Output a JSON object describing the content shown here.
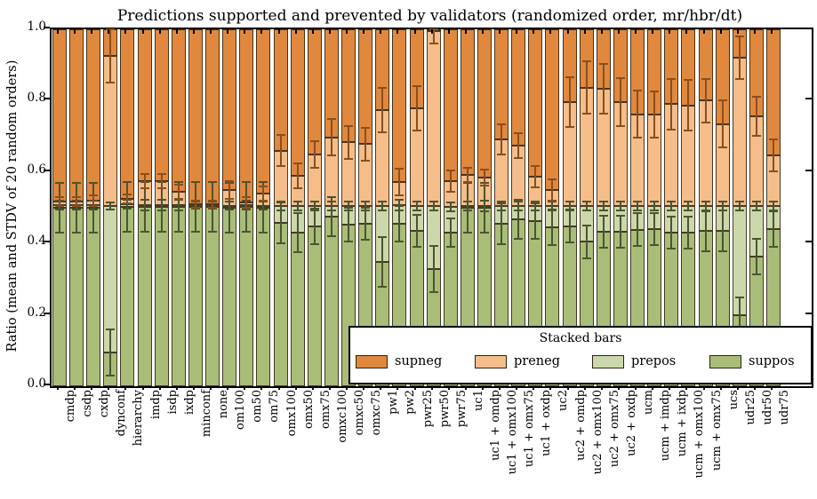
{
  "figure": {
    "title": "Predictions supported and prevented by validators (randomized order, mr/hbr/dt)",
    "ylabel": "Ratio (mean and STDV of 20 random orders)"
  },
  "legend": {
    "title": "Stacked bars",
    "entries": [
      {
        "label": "supneg",
        "color": "#e0883e"
      },
      {
        "label": "preneg",
        "color": "#f4bd8a"
      },
      {
        "label": "prepos",
        "color": "#ccd8ab"
      },
      {
        "label": "suppos",
        "color": "#a9bd79"
      }
    ]
  },
  "axes": {
    "yticks": [
      "0.0",
      "0.2",
      "0.4",
      "0.6",
      "0.8",
      "1.0"
    ]
  },
  "chart_data": {
    "type": "bar",
    "stacked": true,
    "title": "Predictions supported and prevented by validators (randomized order, mr/hbr/dt)",
    "xlabel": "",
    "ylabel": "Ratio (mean and STDV of 20 random orders)",
    "ylim": [
      0,
      1
    ],
    "grid": false,
    "legend_position": "lower right",
    "categories": [
      "cmdp",
      "csdp",
      "cxdp",
      "dynconf",
      "hierarchy",
      "imdp",
      "isdp",
      "ixdp",
      "minconf",
      "none",
      "om100",
      "om50",
      "om75",
      "omx100",
      "omx50",
      "omx75",
      "omxc100",
      "omxc50",
      "omxc75",
      "pw1",
      "pw2",
      "pwr25",
      "pwr50",
      "pwr75",
      "uc1",
      "uc1 + omdp",
      "uc1 + omx100",
      "uc1 + omx75",
      "uc1 + oxdp",
      "uc2",
      "uc2 + omdp",
      "uc2 + omx100",
      "uc2 + omx75",
      "uc2 + oxdp",
      "ucm",
      "ucm + imdp",
      "ucm + ixdp",
      "ucm + omx100",
      "ucm + omx75",
      "ucs",
      "udr25",
      "udr50",
      "udr75"
    ],
    "series": [
      {
        "name": "suppos",
        "color": "#a9bd79",
        "values": [
          0.5,
          0.5,
          0.5,
          0.095,
          0.503,
          0.503,
          0.503,
          0.503,
          0.503,
          0.503,
          0.5,
          0.502,
          0.501,
          0.458,
          0.43,
          0.447,
          0.475,
          0.452,
          0.455,
          0.348,
          0.455,
          0.435,
          0.328,
          0.43,
          0.5,
          0.5,
          0.455,
          0.468,
          0.463,
          0.445,
          0.448,
          0.405,
          0.432,
          0.432,
          0.439,
          0.44,
          0.43,
          0.43,
          0.435,
          0.435,
          0.2,
          0.363,
          0.44
        ]
      },
      {
        "name": "prepos",
        "color": "#ccd8ab",
        "values": [
          0.008,
          0.008,
          0.008,
          0.41,
          0.007,
          0.005,
          0.005,
          0.005,
          0.004,
          0.004,
          0.006,
          0.005,
          0.005,
          0.047,
          0.075,
          0.058,
          0.03,
          0.053,
          0.05,
          0.157,
          0.053,
          0.07,
          0.177,
          0.073,
          0.005,
          0.005,
          0.05,
          0.037,
          0.042,
          0.06,
          0.057,
          0.1,
          0.073,
          0.073,
          0.066,
          0.065,
          0.075,
          0.075,
          0.07,
          0.07,
          0.305,
          0.142,
          0.065
        ]
      },
      {
        "name": "preneg",
        "color": "#f4bd8a",
        "values": [
          0.009,
          0.01,
          0.012,
          0.42,
          0.015,
          0.067,
          0.067,
          0.037,
          0.003,
          0.003,
          0.044,
          0.008,
          0.034,
          0.155,
          0.085,
          0.144,
          0.192,
          0.178,
          0.174,
          0.269,
          0.064,
          0.274,
          0.49,
          0.072,
          0.087,
          0.08,
          0.187,
          0.17,
          0.083,
          0.045,
          0.291,
          0.332,
          0.328,
          0.291,
          0.257,
          0.257,
          0.285,
          0.282,
          0.295,
          0.229,
          0.415,
          0.252,
          0.142
        ]
      },
      {
        "name": "supneg",
        "color": "#e0883e",
        "values": [
          0.483,
          0.482,
          0.48,
          0.075,
          0.475,
          0.425,
          0.425,
          0.455,
          0.49,
          0.49,
          0.45,
          0.485,
          0.46,
          0.34,
          0.41,
          0.351,
          0.303,
          0.317,
          0.321,
          0.226,
          0.428,
          0.221,
          0.005,
          0.425,
          0.408,
          0.415,
          0.308,
          0.325,
          0.412,
          0.45,
          0.204,
          0.163,
          0.167,
          0.204,
          0.238,
          0.238,
          0.21,
          0.213,
          0.2,
          0.266,
          0.08,
          0.243,
          0.353
        ]
      }
    ],
    "error_bars": {
      "suppos_top": [
        0.07,
        0.07,
        0.07,
        0.065,
        0.07,
        0.07,
        0.07,
        0.07,
        0.07,
        0.07,
        0.07,
        0.07,
        0.07,
        0.058,
        0.055,
        0.05,
        0.055,
        0.047,
        0.045,
        0.07,
        0.05,
        0.045,
        0.065,
        0.04,
        0.07,
        0.07,
        0.058,
        0.055,
        0.05,
        0.05,
        0.046,
        0.046,
        0.045,
        0.045,
        0.045,
        0.045,
        0.045,
        0.045,
        0.056,
        0.058,
        0.05,
        0.05,
        0.05
      ],
      "prepos_top": [
        0.012,
        0.012,
        0.012,
        0.01,
        0.012,
        0.015,
        0.015,
        0.015,
        0.01,
        0.01,
        0.012,
        0.012,
        0.012,
        0.012,
        0.012,
        0.012,
        0.012,
        0.012,
        0.012,
        0.012,
        0.015,
        0.012,
        0.012,
        0.012,
        0.012,
        0.015,
        0.012,
        0.012,
        0.012,
        0.012,
        0.012,
        0.012,
        0.012,
        0.012,
        0.012,
        0.012,
        0.012,
        0.012,
        0.012,
        0.012,
        0.012,
        0.012,
        0.012
      ],
      "preneg_top": [
        0.012,
        0.012,
        0.015,
        0.075,
        0.012,
        0.02,
        0.02,
        0.02,
        0.01,
        0.01,
        0.025,
        0.015,
        0.02,
        0.043,
        0.035,
        0.037,
        0.051,
        0.046,
        0.046,
        0.062,
        0.037,
        0.062,
        0.035,
        0.03,
        0.021,
        0.022,
        0.042,
        0.035,
        0.03,
        0.03,
        0.07,
        0.073,
        0.07,
        0.066,
        0.066,
        0.065,
        0.07,
        0.07,
        0.06,
        0.066,
        0.06,
        0.055,
        0.045
      ]
    },
    "error_colors": {
      "green_boundaries": "#4c5530",
      "orange_boundary": "#8a4f1e"
    }
  }
}
